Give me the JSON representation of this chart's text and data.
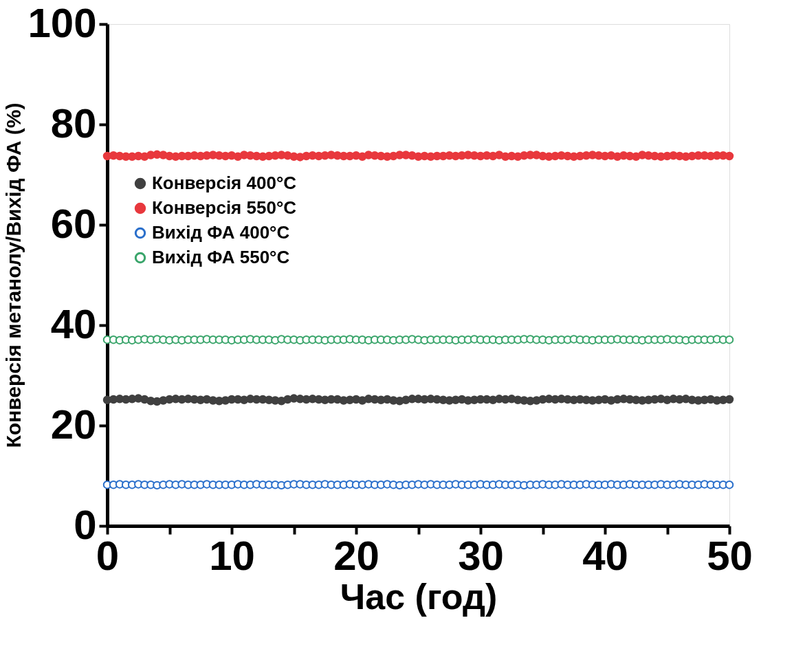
{
  "chart_data": {
    "type": "scatter",
    "xlabel": "Час (год)",
    "ylabel": "Конверсія метанолу/Вихід ФА (%)",
    "x": [
      0,
      0.5,
      1,
      1.5,
      2,
      2.5,
      3,
      3.5,
      4,
      4.5,
      5,
      5.5,
      6,
      6.5,
      7,
      7.5,
      8,
      8.5,
      9,
      9.5,
      10,
      10.5,
      11,
      11.5,
      12,
      12.5,
      13,
      13.5,
      14,
      14.5,
      15,
      15.5,
      16,
      16.5,
      17,
      17.5,
      18,
      18.5,
      19,
      19.5,
      20,
      20.5,
      21,
      21.5,
      22,
      22.5,
      23,
      23.5,
      24,
      24.5,
      25,
      25.5,
      26,
      26.5,
      27,
      27.5,
      28,
      28.5,
      29,
      29.5,
      30,
      30.5,
      31,
      31.5,
      32,
      32.5,
      33,
      33.5,
      34,
      34.5,
      35,
      35.5,
      36,
      36.5,
      37,
      37.5,
      38,
      38.5,
      39,
      39.5,
      40,
      40.5,
      41,
      41.5,
      42,
      42.5,
      43,
      43.5,
      44,
      44.5,
      45,
      45.5,
      46,
      46.5,
      47,
      47.5,
      48,
      48.5,
      49,
      49.5,
      50
    ],
    "series": [
      {
        "name": "Конверсія 400°C",
        "color": "#404040",
        "values": [
          25.1,
          25.2,
          25.3,
          25.2,
          25.3,
          25.4,
          25.2,
          24.9,
          24.8,
          25.0,
          25.2,
          25.3,
          25.2,
          25.3,
          25.2,
          25.1,
          25.2,
          25.0,
          24.9,
          25.0,
          25.2,
          25.2,
          25.1,
          25.3,
          25.2,
          25.2,
          25.1,
          25.0,
          24.9,
          25.2,
          25.4,
          25.3,
          25.2,
          25.3,
          25.2,
          25.1,
          25.2,
          25.2,
          25.0,
          25.1,
          25.2,
          25.0,
          25.3,
          25.2,
          25.1,
          25.2,
          25.0,
          24.9,
          25.1,
          25.3,
          25.3,
          25.2,
          25.3,
          25.2,
          25.1,
          25.0,
          25.1,
          25.2,
          25.0,
          25.1,
          25.2,
          25.2,
          25.1,
          25.3,
          25.2,
          25.3,
          25.1,
          25.0,
          24.9,
          25.0,
          25.2,
          25.3,
          25.2,
          25.3,
          25.2,
          25.1,
          25.2,
          25.1,
          25.0,
          25.1,
          25.2,
          25.0,
          25.2,
          25.3,
          25.2,
          25.1,
          25.0,
          25.1,
          25.2,
          25.3,
          25.1,
          25.3,
          25.2,
          25.3,
          25.1,
          25.0,
          25.1,
          25.2,
          25.0,
          25.1,
          25.2
        ]
      },
      {
        "name": "Конверсія 550°C",
        "color": "#e8383d",
        "values": [
          73.7,
          73.8,
          73.7,
          73.6,
          73.6,
          73.7,
          73.6,
          73.9,
          74.0,
          73.9,
          73.7,
          73.6,
          73.7,
          73.7,
          73.8,
          73.7,
          73.8,
          73.9,
          73.8,
          73.7,
          73.8,
          73.6,
          73.9,
          73.8,
          73.7,
          73.6,
          73.7,
          73.8,
          73.9,
          73.8,
          73.6,
          73.5,
          73.7,
          73.8,
          73.7,
          73.8,
          73.9,
          73.8,
          73.7,
          73.7,
          73.8,
          73.6,
          73.9,
          73.8,
          73.7,
          73.6,
          73.7,
          73.9,
          73.9,
          73.8,
          73.6,
          73.7,
          73.6,
          73.7,
          73.7,
          73.8,
          73.7,
          73.8,
          73.9,
          73.8,
          73.7,
          73.8,
          73.7,
          73.9,
          73.6,
          73.7,
          73.6,
          73.8,
          73.9,
          73.9,
          73.7,
          73.6,
          73.7,
          73.8,
          73.7,
          73.6,
          73.7,
          73.8,
          73.9,
          73.8,
          73.7,
          73.8,
          73.6,
          73.8,
          73.7,
          73.6,
          73.9,
          73.8,
          73.7,
          73.6,
          73.7,
          73.8,
          73.7,
          73.6,
          73.7,
          73.8,
          73.8,
          73.7,
          73.8,
          73.8,
          73.7
        ]
      },
      {
        "name": "Вихід ФА 400°C",
        "color": "#2a6fcb",
        "values": [
          8.2,
          8.2,
          8.3,
          8.2,
          8.2,
          8.3,
          8.2,
          8.2,
          8.1,
          8.2,
          8.3,
          8.2,
          8.3,
          8.2,
          8.2,
          8.2,
          8.3,
          8.2,
          8.2,
          8.2,
          8.2,
          8.3,
          8.2,
          8.2,
          8.3,
          8.2,
          8.2,
          8.2,
          8.1,
          8.2,
          8.3,
          8.3,
          8.2,
          8.2,
          8.2,
          8.3,
          8.2,
          8.2,
          8.2,
          8.3,
          8.2,
          8.2,
          8.3,
          8.2,
          8.2,
          8.3,
          8.2,
          8.1,
          8.2,
          8.2,
          8.3,
          8.2,
          8.3,
          8.2,
          8.2,
          8.2,
          8.3,
          8.2,
          8.2,
          8.2,
          8.3,
          8.2,
          8.2,
          8.3,
          8.2,
          8.2,
          8.2,
          8.1,
          8.2,
          8.2,
          8.3,
          8.2,
          8.2,
          8.3,
          8.2,
          8.2,
          8.2,
          8.3,
          8.2,
          8.2,
          8.2,
          8.3,
          8.2,
          8.2,
          8.3,
          8.2,
          8.2,
          8.2,
          8.2,
          8.3,
          8.2,
          8.2,
          8.3,
          8.2,
          8.2,
          8.2,
          8.3,
          8.2,
          8.2,
          8.2,
          8.2
        ]
      },
      {
        "name": "Вихід ФА 550°C",
        "color": "#3aa56b",
        "values": [
          37.1,
          37.1,
          37.0,
          37.1,
          37.0,
          37.1,
          37.2,
          37.1,
          37.2,
          37.1,
          37.0,
          37.1,
          37.0,
          37.1,
          37.1,
          37.1,
          37.2,
          37.1,
          37.1,
          37.1,
          37.0,
          37.1,
          37.1,
          37.2,
          37.1,
          37.1,
          37.1,
          37.0,
          37.2,
          37.1,
          37.1,
          37.0,
          37.1,
          37.1,
          37.1,
          37.0,
          37.1,
          37.1,
          37.1,
          37.2,
          37.1,
          37.1,
          37.0,
          37.1,
          37.1,
          37.1,
          37.0,
          37.1,
          37.1,
          37.2,
          37.1,
          37.0,
          37.1,
          37.1,
          37.1,
          37.1,
          37.0,
          37.1,
          37.1,
          37.2,
          37.1,
          37.1,
          37.1,
          37.0,
          37.1,
          37.1,
          37.1,
          37.2,
          37.2,
          37.1,
          37.1,
          37.0,
          37.1,
          37.1,
          37.1,
          37.2,
          37.1,
          37.1,
          37.0,
          37.1,
          37.1,
          37.1,
          37.2,
          37.1,
          37.1,
          37.1,
          37.0,
          37.1,
          37.1,
          37.1,
          37.2,
          37.1,
          37.1,
          37.0,
          37.1,
          37.1,
          37.1,
          37.1,
          37.2,
          37.1,
          37.1
        ]
      }
    ],
    "xlim": [
      0,
      50
    ],
    "xticks": [
      0,
      {
        "value": 5,
        "label": null
      },
      10,
      {
        "value": 15,
        "label": null
      },
      20,
      {
        "value": 25,
        "label": null
      },
      30,
      {
        "value": 35,
        "label": null
      },
      40,
      {
        "value": 45,
        "label": null
      },
      50
    ],
    "ylim": [
      0,
      100
    ],
    "yticks": [
      0,
      20,
      40,
      60,
      80,
      100
    ],
    "grid": false,
    "legend": "left",
    "marker": "circle"
  }
}
